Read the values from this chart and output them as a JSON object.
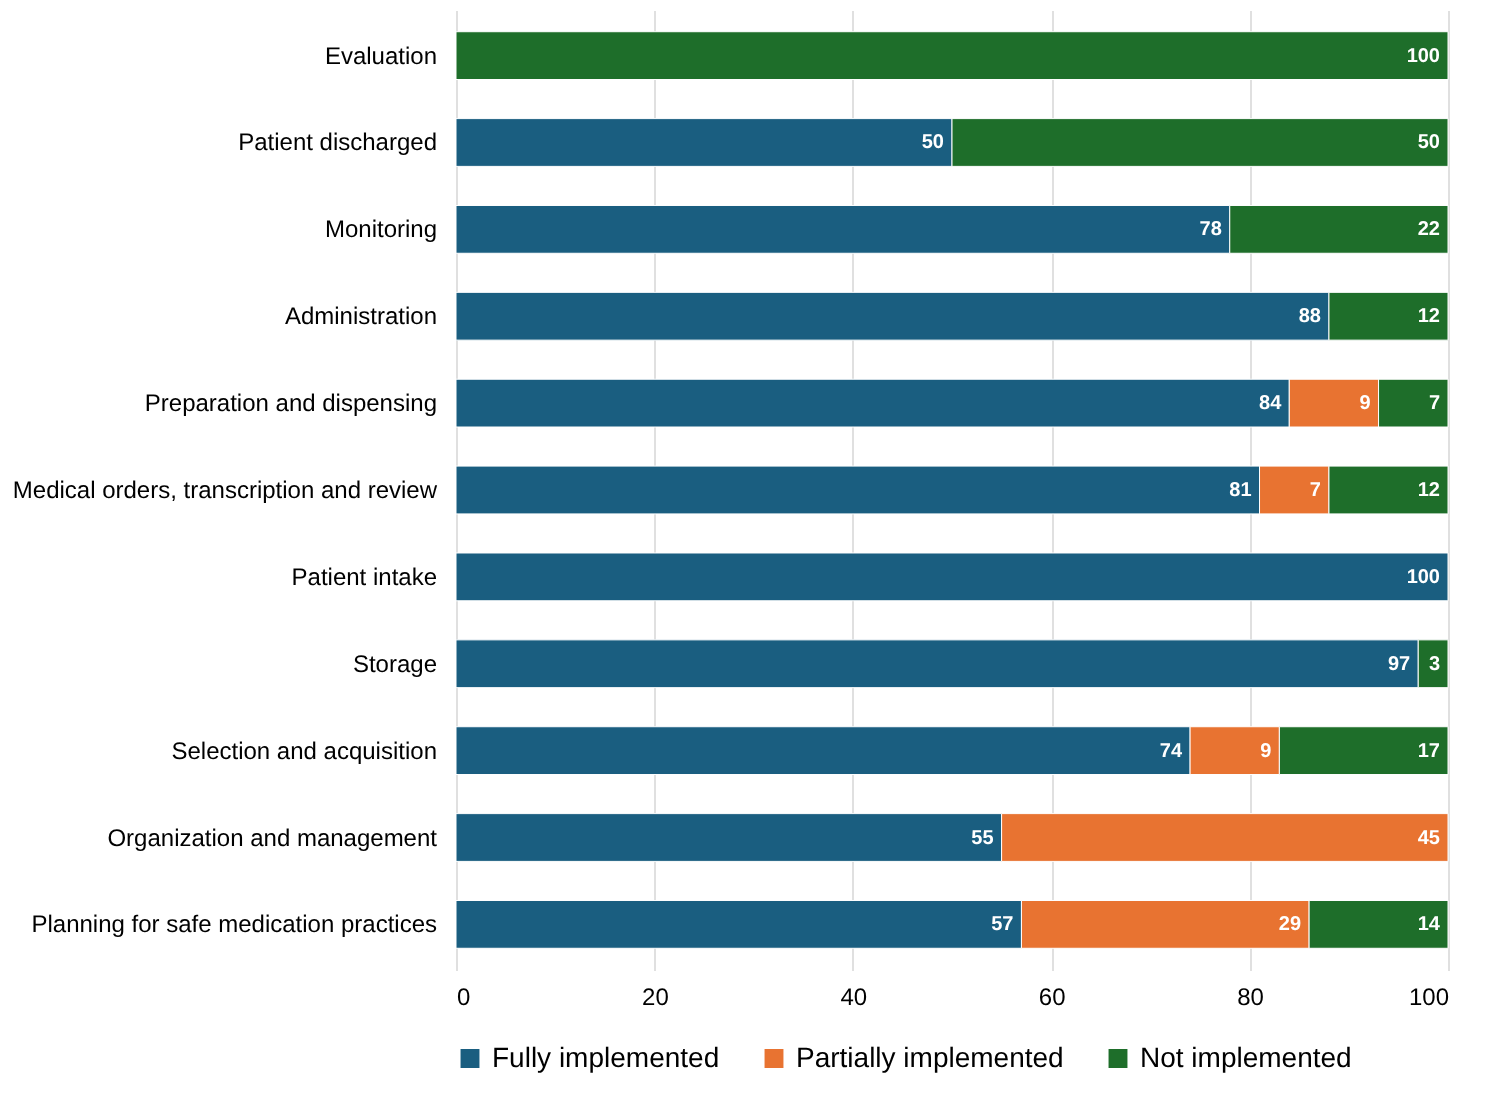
{
  "chart_data": {
    "type": "bar",
    "orientation": "horizontal",
    "stacked": true,
    "data_labels": true,
    "grid": "x",
    "legend": "bottom",
    "categories": [
      "Evaluation",
      "Patient discharged",
      "Monitoring",
      "Administration",
      "Preparation and dispensing",
      "Medical orders, transcription and review",
      "Patient intake",
      "Storage",
      "Selection and acquisition",
      "Organization and management",
      "Planning for safe medication practices"
    ],
    "series": [
      {
        "name": "Fully implemented",
        "color": "#1a5e80",
        "values": [
          null,
          50,
          78,
          88,
          84,
          81,
          100,
          97,
          74,
          55,
          57
        ]
      },
      {
        "name": "Partially implemented",
        "color": "#e87331",
        "values": [
          null,
          null,
          null,
          null,
          9,
          7,
          null,
          null,
          9,
          45,
          29
        ]
      },
      {
        "name": "Not implemented",
        "color": "#1e6e2a",
        "values": [
          100,
          50,
          22,
          12,
          7,
          12,
          null,
          3,
          17,
          null,
          14
        ]
      }
    ],
    "xlim": [
      0,
      100
    ],
    "xticks": [
      0,
      20,
      40,
      60,
      80,
      100
    ]
  }
}
